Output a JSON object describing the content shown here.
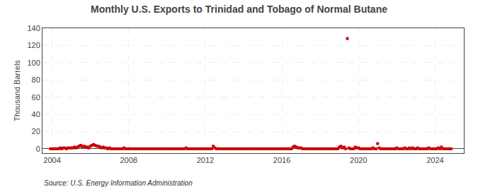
{
  "chart_data": {
    "type": "scatter",
    "title": "Monthly U.S. Exports to Trinidad and Tobago of Normal Butane",
    "y_label": "Thousand Barrels",
    "annotations": [
      "Source: U.S. Energy Information Administration"
    ],
    "color": "#cc0000",
    "marker": "square",
    "grid": true,
    "xlim": [
      2003.5,
      2025.5
    ],
    "ylim": [
      -5,
      140
    ],
    "xticks": [
      2004,
      2008,
      2012,
      2016,
      2020,
      2024
    ],
    "yticks": [
      0,
      20,
      40,
      60,
      80,
      100,
      120,
      140
    ],
    "x": [
      2003.917,
      2004.0,
      2004.083,
      2004.167,
      2004.25,
      2004.333,
      2004.417,
      2004.5,
      2004.583,
      2004.667,
      2004.75,
      2004.833,
      2004.917,
      2005.0,
      2005.083,
      2005.167,
      2005.25,
      2005.333,
      2005.417,
      2005.5,
      2005.583,
      2005.667,
      2005.75,
      2005.833,
      2005.917,
      2006.0,
      2006.083,
      2006.167,
      2006.25,
      2006.333,
      2006.417,
      2006.5,
      2006.583,
      2006.667,
      2006.75,
      2006.833,
      2006.917,
      2007.0,
      2007.083,
      2007.167,
      2007.25,
      2007.333,
      2007.417,
      2007.5,
      2007.583,
      2007.667,
      2007.75,
      2007.833,
      2007.917,
      2008.0,
      2008.083,
      2008.167,
      2008.25,
      2008.333,
      2008.417,
      2008.5,
      2008.583,
      2008.667,
      2008.75,
      2008.833,
      2008.917,
      2009.0,
      2009.083,
      2009.167,
      2009.25,
      2009.333,
      2009.417,
      2009.5,
      2009.583,
      2009.667,
      2009.75,
      2009.833,
      2009.917,
      2010.0,
      2010.083,
      2010.167,
      2010.25,
      2010.333,
      2010.417,
      2010.5,
      2010.583,
      2010.667,
      2010.75,
      2010.833,
      2010.917,
      2011.0,
      2011.083,
      2011.167,
      2011.25,
      2011.333,
      2011.417,
      2011.5,
      2011.583,
      2011.667,
      2011.75,
      2011.833,
      2011.917,
      2012.0,
      2012.083,
      2012.167,
      2012.25,
      2012.333,
      2012.417,
      2012.5,
      2012.583,
      2012.667,
      2012.75,
      2012.833,
      2012.917,
      2013.0,
      2013.083,
      2013.167,
      2013.25,
      2013.333,
      2013.417,
      2013.5,
      2013.583,
      2013.667,
      2013.75,
      2013.833,
      2013.917,
      2014.0,
      2014.083,
      2014.167,
      2014.25,
      2014.333,
      2014.417,
      2014.5,
      2014.583,
      2014.667,
      2014.75,
      2014.833,
      2014.917,
      2015.0,
      2015.083,
      2015.167,
      2015.25,
      2015.333,
      2015.417,
      2015.5,
      2015.583,
      2015.667,
      2015.75,
      2015.833,
      2015.917,
      2016.0,
      2016.083,
      2016.167,
      2016.25,
      2016.333,
      2016.417,
      2016.5,
      2016.583,
      2016.667,
      2016.75,
      2016.833,
      2016.917,
      2017.0,
      2017.083,
      2017.167,
      2017.25,
      2017.333,
      2017.417,
      2017.5,
      2017.583,
      2017.667,
      2017.75,
      2017.833,
      2017.917,
      2018.0,
      2018.083,
      2018.167,
      2018.25,
      2018.333,
      2018.417,
      2018.5,
      2018.583,
      2018.667,
      2018.75,
      2018.833,
      2018.917,
      2019.0,
      2019.083,
      2019.167,
      2019.25,
      2019.333,
      2019.417,
      2019.5,
      2019.583,
      2019.667,
      2019.75,
      2019.833,
      2019.917,
      2020.0,
      2020.083,
      2020.167,
      2020.25,
      2020.333,
      2020.417,
      2020.5,
      2020.583,
      2020.667,
      2020.75,
      2020.833,
      2020.917,
      2021.0,
      2021.083,
      2021.167,
      2021.25,
      2021.333,
      2021.417,
      2021.5,
      2021.583,
      2021.667,
      2021.75,
      2021.833,
      2021.917,
      2022.0,
      2022.083,
      2022.167,
      2022.25,
      2022.333,
      2022.417,
      2022.5,
      2022.583,
      2022.667,
      2022.75,
      2022.833,
      2022.917,
      2023.0,
      2023.083,
      2023.167,
      2023.25,
      2023.333,
      2023.417,
      2023.5,
      2023.583,
      2023.667,
      2023.75,
      2023.833,
      2023.917,
      2024.0,
      2024.083,
      2024.167,
      2024.25,
      2024.333,
      2024.417,
      2024.5,
      2024.583,
      2024.667,
      2024.75,
      2024.833
    ],
    "values": [
      0,
      0,
      0,
      0,
      0,
      0,
      1,
      0,
      1,
      1,
      0,
      1,
      1,
      1,
      1,
      2,
      1,
      2,
      3,
      4,
      2,
      3,
      2,
      2,
      1,
      3,
      4,
      5,
      4,
      3,
      3,
      2,
      1,
      2,
      1,
      1,
      0,
      1,
      0,
      0,
      0,
      0,
      0,
      0,
      0,
      0,
      1,
      0,
      0,
      0,
      0,
      0,
      0,
      0,
      0,
      0,
      0,
      0,
      0,
      0,
      0,
      0,
      0,
      0,
      0,
      0,
      0,
      0,
      0,
      0,
      0,
      0,
      0,
      0,
      0,
      0,
      0,
      0,
      0,
      0,
      0,
      0,
      0,
      0,
      0,
      1,
      0,
      0,
      0,
      0,
      0,
      0,
      0,
      0,
      0,
      0,
      0,
      0,
      0,
      0,
      0,
      0,
      3,
      1,
      0,
      0,
      0,
      0,
      0,
      0,
      0,
      0,
      0,
      0,
      0,
      0,
      0,
      0,
      0,
      0,
      0,
      0,
      0,
      0,
      0,
      0,
      0,
      0,
      0,
      0,
      0,
      0,
      0,
      0,
      0,
      0,
      0,
      0,
      0,
      0,
      0,
      0,
      0,
      0,
      0,
      0,
      0,
      0,
      0,
      0,
      0,
      0,
      2,
      3,
      2,
      1,
      1,
      1,
      0,
      0,
      0,
      0,
      0,
      0,
      0,
      0,
      0,
      0,
      0,
      0,
      0,
      0,
      0,
      0,
      0,
      0,
      0,
      0,
      0,
      0,
      0,
      2,
      3,
      1,
      2,
      0,
      128,
      1,
      0,
      0,
      0,
      2,
      1,
      1,
      0,
      0,
      0,
      0,
      0,
      0,
      0,
      0,
      1,
      0,
      0,
      6,
      1,
      0,
      0,
      0,
      0,
      0,
      0,
      0,
      0,
      0,
      0,
      1,
      0,
      0,
      0,
      0,
      1,
      0,
      0,
      1,
      0,
      1,
      0,
      0,
      1,
      0,
      0,
      0,
      0,
      0,
      0,
      1,
      0,
      0,
      0,
      0,
      0,
      1,
      0,
      2,
      0,
      0,
      0,
      0,
      0,
      0
    ]
  }
}
